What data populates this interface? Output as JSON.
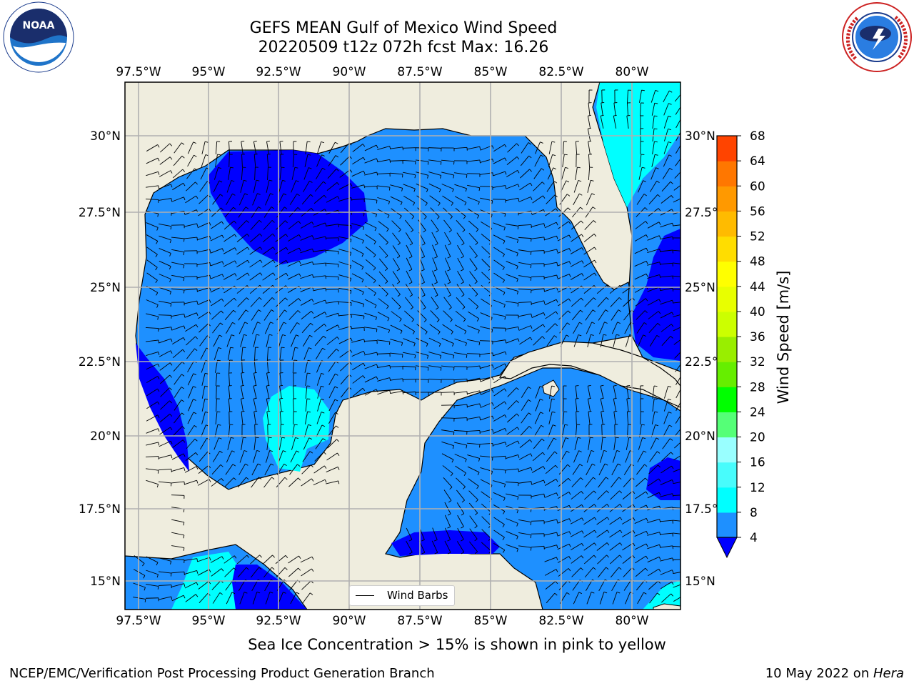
{
  "title": {
    "line1": "GEFS MEAN Gulf of Mexico Wind Speed",
    "line2": "20220509 t12z 072h fcst   Max: 16.26"
  },
  "logos": {
    "noaa": "NOAA",
    "noaa_ring": "NATIONAL OCEANIC AND ATMOSPHERIC ADMINISTRATION · U.S. DEPARTMENT OF COMMERCE",
    "nws_ring": "NATIONAL WEATHER SERVICE"
  },
  "map": {
    "lon_ticks": [
      "97.5°W",
      "95°W",
      "92.5°W",
      "90°W",
      "87.5°W",
      "85°W",
      "82.5°W",
      "80°W"
    ],
    "lat_ticks": [
      "30°N",
      "27.5°N",
      "25°N",
      "22.5°N",
      "20°N",
      "17.5°N",
      "15°N"
    ],
    "land_color": "#efedde",
    "grid_color": "#b0b0b0",
    "legend_label": "Wind Barbs"
  },
  "colorbar": {
    "label": "Wind Speed [m/s]",
    "ticks": [
      "4",
      "8",
      "12",
      "16",
      "20",
      "24",
      "28",
      "32",
      "36",
      "40",
      "44",
      "48",
      "52",
      "56",
      "60",
      "64",
      "68"
    ],
    "colors": [
      "#1e90ff",
      "#00ffff",
      "#48fcfc",
      "#99ffff",
      "#55ff77",
      "#00ff00",
      "#66ee00",
      "#99ee00",
      "#ccff00",
      "#e8ff00",
      "#ffff00",
      "#ffdd00",
      "#ffbb00",
      "#ff9900",
      "#ff7700",
      "#ff4400",
      "#ff0000"
    ],
    "extend_color": "#0000ff"
  },
  "caption": "Sea Ice Concentration > 15% is shown in pink to yellow",
  "footer": {
    "left": "NCEP/EMC/Verification Post Processing Product Generation Branch",
    "right_date": "10 May 2022 on ",
    "right_machine": "Hera"
  }
}
